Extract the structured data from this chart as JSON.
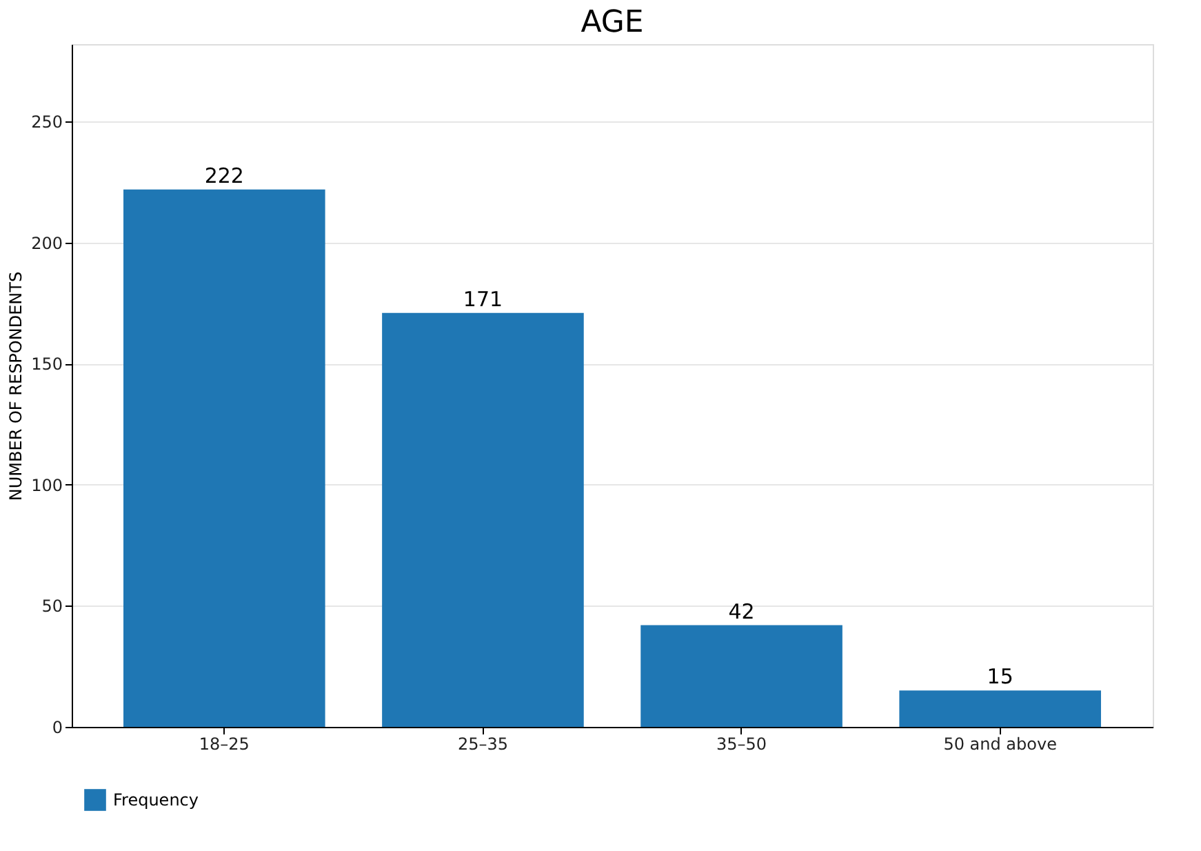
{
  "chart_data": {
    "type": "bar",
    "title": "AGE",
    "ylabel": "NUMBER OF RESPONDENTS",
    "categories": [
      "18–25",
      "25–35",
      "35–50",
      "50 and above"
    ],
    "series": [
      {
        "name": "Frequency",
        "color": "#1f77b4",
        "values": [
          222,
          171,
          42,
          15
        ]
      }
    ],
    "ylim": [
      0,
      282
    ],
    "yticks": [
      0,
      50,
      100,
      150,
      200,
      250
    ],
    "grid": "y",
    "legend": "bottom",
    "data_labels": true
  }
}
